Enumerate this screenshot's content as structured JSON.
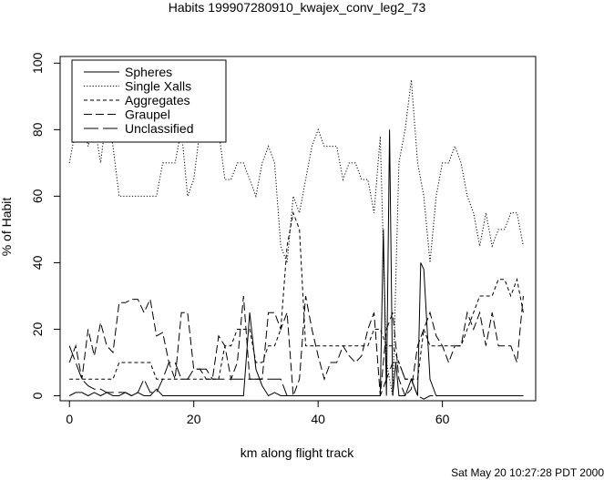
{
  "chart_data": {
    "type": "line",
    "title": "Habits 199907280910_kwajex_conv_leg2_73",
    "xlabel": "km along flight track",
    "ylabel": "% of Habit",
    "xlim": [
      -1.5,
      75
    ],
    "ylim": [
      -1.5,
      102
    ],
    "x_ticks": [
      0,
      20,
      40,
      60
    ],
    "y_ticks": [
      0,
      20,
      40,
      60,
      80,
      100
    ],
    "grid": false,
    "legend_position": "top-left",
    "footer": "Sat May 20 10:27:28 PDT 2000",
    "series": [
      {
        "name": "Spheres",
        "dash": "solid",
        "x": [
          0,
          1,
          2,
          3,
          4,
          5,
          6,
          7,
          8,
          9,
          10,
          11,
          12,
          13,
          14,
          15,
          16,
          17,
          18,
          19,
          20,
          21,
          22,
          23,
          24,
          25,
          26,
          27,
          28,
          29,
          30,
          31,
          32,
          33,
          34,
          35,
          36,
          37,
          38,
          39,
          40,
          41,
          42,
          43,
          44,
          45,
          46,
          47,
          48,
          49,
          50,
          50.5,
          51,
          51.5,
          52,
          52.5,
          53,
          54,
          55,
          56,
          56.5,
          57,
          58,
          59,
          60,
          61,
          62,
          63,
          64,
          65,
          66,
          67,
          68,
          69,
          70,
          71,
          72,
          73
        ],
        "y": [
          0,
          1,
          1,
          0,
          1,
          0,
          1,
          0,
          0,
          1,
          0,
          1,
          0,
          0,
          2,
          0,
          0,
          0,
          0,
          0,
          0,
          0,
          0,
          0,
          0,
          0,
          0,
          0,
          0,
          25,
          8,
          3,
          0,
          1,
          0,
          0,
          0,
          0,
          0,
          0,
          0,
          0,
          0,
          0,
          0,
          0,
          0,
          0,
          0,
          0,
          0,
          50,
          0,
          80,
          0,
          10,
          0,
          0,
          5,
          0,
          40,
          38,
          5,
          0,
          0,
          0,
          0,
          0,
          0,
          0,
          0,
          0,
          0,
          0,
          0,
          0,
          0,
          0
        ]
      },
      {
        "name": "Single Xalls",
        "dash": "dotted",
        "x": [
          0,
          1,
          2,
          3,
          4,
          5,
          6,
          7,
          8,
          9,
          10,
          11,
          12,
          13,
          14,
          15,
          16,
          17,
          18,
          19,
          20,
          21,
          22,
          23,
          24,
          25,
          26,
          27,
          28,
          29,
          30,
          31,
          32,
          33,
          34,
          35,
          36,
          37,
          38,
          39,
          40,
          41,
          42,
          43,
          44,
          45,
          46,
          47,
          48,
          49,
          50,
          51,
          52,
          53,
          54,
          55,
          56,
          57,
          58,
          59,
          60,
          61,
          62,
          63,
          64,
          65,
          66,
          67,
          68,
          69,
          70,
          71,
          72,
          73
        ],
        "y": [
          70,
          80,
          85,
          75,
          82,
          70,
          85,
          75,
          60,
          60,
          60,
          60,
          60,
          60,
          60,
          70,
          70,
          70,
          80,
          60,
          65,
          80,
          82,
          80,
          80,
          65,
          65,
          70,
          70,
          65,
          60,
          70,
          75,
          70,
          45,
          40,
          60,
          55,
          65,
          75,
          80,
          75,
          75,
          75,
          65,
          70,
          70,
          65,
          65,
          55,
          78,
          10,
          0,
          70,
          80,
          95,
          70,
          60,
          40,
          60,
          70,
          70,
          75,
          70,
          60,
          55,
          45,
          55,
          45,
          50,
          50,
          55,
          55,
          45
        ]
      },
      {
        "name": "Aggregates",
        "dash": "dashed",
        "x": [
          0,
          1,
          2,
          3,
          4,
          5,
          6,
          7,
          8,
          9,
          10,
          11,
          12,
          13,
          14,
          15,
          16,
          17,
          18,
          19,
          20,
          21,
          22,
          23,
          24,
          25,
          26,
          27,
          28,
          29,
          30,
          31,
          32,
          33,
          34,
          35,
          36,
          37,
          38,
          39,
          40,
          41,
          42,
          43,
          44,
          45,
          46,
          47,
          48,
          49,
          50,
          51,
          52,
          53,
          54,
          55,
          56,
          57,
          58,
          59,
          60,
          61,
          62,
          63,
          64,
          65,
          66,
          67,
          68,
          69,
          70,
          71,
          72,
          73
        ],
        "y": [
          5,
          5,
          5,
          5,
          5,
          5,
          5,
          5,
          10,
          10,
          10,
          10,
          10,
          10,
          5,
          5,
          5,
          5,
          5,
          5,
          5,
          5,
          5,
          5,
          5,
          15,
          15,
          20,
          20,
          20,
          10,
          10,
          15,
          15,
          20,
          45,
          55,
          50,
          15,
          15,
          15,
          15,
          15,
          15,
          15,
          15,
          15,
          15,
          15,
          20,
          20,
          15,
          15,
          10,
          5,
          5,
          5,
          20,
          15,
          15,
          15,
          15,
          15,
          15,
          20,
          25,
          30,
          30,
          30,
          35,
          35,
          30,
          35,
          25
        ]
      },
      {
        "name": "Graupel",
        "dash": "longdash",
        "x": [
          0,
          1,
          2,
          3,
          4,
          5,
          6,
          7,
          8,
          9,
          10,
          11,
          12,
          13,
          14,
          15,
          16,
          17,
          18,
          19,
          20,
          21,
          22,
          23,
          24,
          25,
          26,
          27,
          28,
          29,
          30,
          31,
          32,
          33,
          34,
          35,
          36,
          37,
          38,
          39,
          40,
          41,
          42,
          43,
          44,
          45,
          46,
          47,
          48,
          49,
          50,
          51,
          52,
          53,
          54,
          55,
          56,
          57,
          58,
          59,
          60,
          61,
          62,
          63,
          64,
          65,
          66,
          67,
          68,
          69,
          70,
          71,
          72,
          73
        ],
        "y": [
          10,
          15,
          5,
          20,
          12,
          22,
          15,
          13,
          28,
          28,
          29,
          29,
          25,
          29,
          18,
          19,
          10,
          5,
          25,
          25,
          8,
          8,
          5,
          5,
          18,
          15,
          5,
          10,
          30,
          5,
          5,
          5,
          25,
          25,
          20,
          25,
          0,
          5,
          30,
          20,
          12,
          5,
          10,
          10,
          15,
          12,
          10,
          12,
          20,
          25,
          0,
          20,
          25,
          5,
          0,
          2,
          15,
          20,
          25,
          18,
          15,
          10,
          15,
          15,
          25,
          20,
          25,
          15,
          25,
          15,
          15,
          15,
          10,
          30
        ]
      },
      {
        "name": "Unclassified",
        "dash": "xlongdash",
        "x": [
          0,
          1,
          2,
          3,
          4,
          5,
          6,
          7,
          8,
          9,
          10,
          11,
          12,
          13,
          14,
          15,
          16,
          17,
          18,
          19,
          20,
          21,
          22,
          23,
          24,
          25,
          26,
          27,
          28,
          29,
          30,
          31,
          32,
          33,
          34,
          35,
          36,
          37,
          38,
          39,
          40,
          41,
          42,
          43,
          44,
          45,
          46,
          47,
          48,
          49,
          50,
          51,
          52,
          53,
          54,
          55,
          56,
          57,
          58,
          59,
          60,
          61,
          62,
          63,
          64,
          65,
          66,
          67,
          68,
          69,
          70,
          71,
          72,
          73
        ],
        "y": [
          15,
          10,
          5,
          3,
          2,
          2,
          1,
          1,
          1,
          1,
          0,
          1,
          5,
          1,
          1,
          5,
          10,
          10,
          5,
          5,
          8,
          8,
          8,
          5,
          5,
          5,
          5,
          5,
          5,
          5,
          5,
          5,
          5,
          5,
          5,
          0,
          0,
          0,
          0,
          0,
          0,
          0,
          0,
          0,
          0,
          0,
          0,
          0,
          0,
          0,
          0,
          5,
          10,
          10,
          5,
          5,
          0,
          -1,
          0,
          0,
          0,
          0,
          0,
          0,
          0,
          0,
          0,
          0,
          0,
          0,
          0,
          0,
          0,
          0
        ]
      }
    ]
  }
}
